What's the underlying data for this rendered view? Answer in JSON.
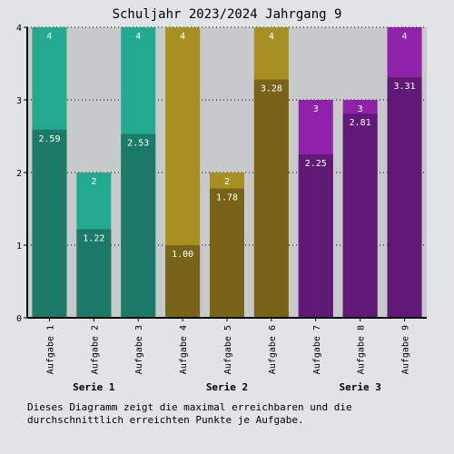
{
  "chart_data": {
    "type": "bar",
    "title": "Schuljahr 2023/2024 Jahrgang 9",
    "categories": [
      "Aufgabe 1",
      "Aufgabe 2",
      "Aufgabe 3",
      "Aufgabe 4",
      "Aufgabe 5",
      "Aufgabe 6",
      "Aufgabe 7",
      "Aufgabe 8",
      "Aufgabe 9"
    ],
    "groups": [
      {
        "label": "Serie 1",
        "categories": [
          0,
          1,
          2
        ],
        "max_color": "#22a98f",
        "avg_color": "#1b7a68"
      },
      {
        "label": "Serie 2",
        "categories": [
          3,
          4,
          5
        ],
        "max_color": "#a88f22",
        "avg_color": "#786419"
      },
      {
        "label": "Serie 3",
        "categories": [
          6,
          7,
          8
        ],
        "max_color": "#8f22a8",
        "avg_color": "#611977"
      }
    ],
    "series": [
      {
        "key": "max",
        "values": [
          4,
          2,
          4,
          4,
          2,
          4,
          3,
          3,
          4
        ],
        "labels": [
          "4",
          "2",
          "4",
          "4",
          "2",
          "4",
          "3",
          "3",
          "4"
        ]
      },
      {
        "key": "avg",
        "values": [
          2.59,
          1.22,
          2.53,
          1.0,
          1.78,
          3.28,
          2.25,
          2.81,
          3.31
        ],
        "labels": [
          "2.59",
          "1.22",
          "2.53",
          "1.00",
          "1.78",
          "3.28",
          "2.25",
          "2.81",
          "3.31"
        ]
      }
    ],
    "ylim": [
      0,
      4
    ],
    "yticks": [
      "0",
      "1",
      "2",
      "3",
      "4"
    ],
    "grid": true,
    "plot_background": "#c8c9cb",
    "grid_color": "#000000"
  },
  "caption": "Dieses Diagramm zeigt die maximal erreichbaren und die durchschnittlich erreichten Punkte je Aufgabe."
}
